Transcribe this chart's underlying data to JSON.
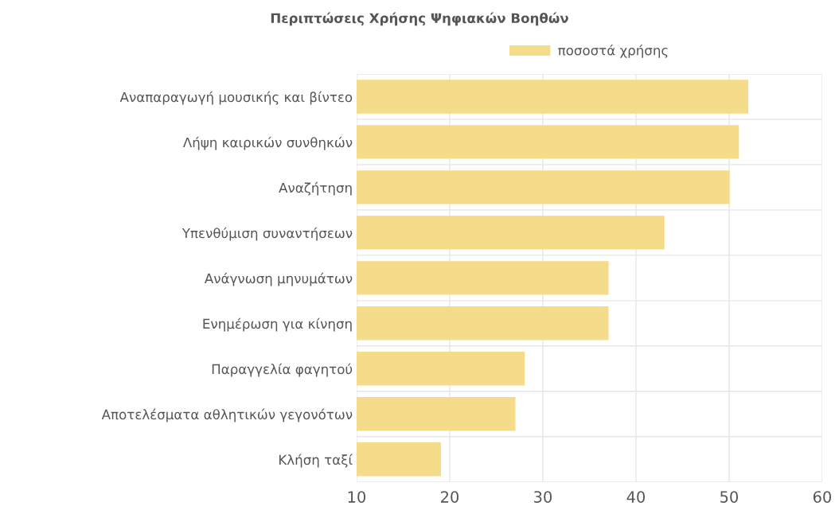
{
  "chart_data": {
    "type": "bar",
    "orientation": "horizontal",
    "title": "Περιπτώσεις Χρήσης Ψηφιακών Βοηθών",
    "categories": [
      "Αναπαραγωγή μουσικής και βίντεο",
      "Λήψη καιρικών συνθηκών",
      "Αναζήτηση",
      "Υπενθύμιση συναντήσεων",
      "Ανάγνωση μηνυμάτων",
      "Ενημέρωση για κίνηση",
      "Παραγγελία φαγητού",
      "Αποτελέσματα αθλητικών γεγονότων",
      "Κλήση ταξί"
    ],
    "series": [
      {
        "name": "ποσοστά χρήσης",
        "color": "#f5dc8b",
        "values": [
          52,
          51,
          50,
          43,
          37,
          37,
          28,
          27,
          19
        ]
      }
    ],
    "xlim": [
      10,
      60
    ],
    "xticks": [
      10,
      20,
      30,
      40,
      50,
      60
    ],
    "grid": true,
    "legend": "top"
  }
}
